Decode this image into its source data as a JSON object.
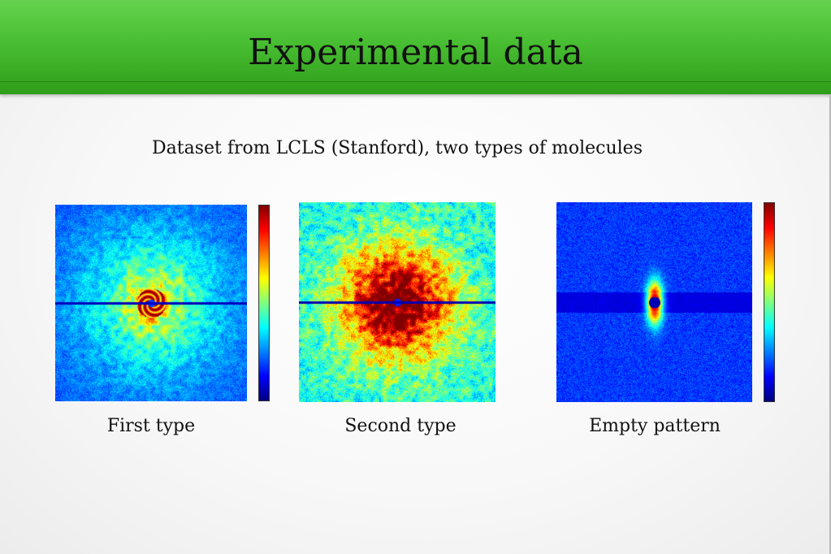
{
  "slide": {
    "title": "Experimental data",
    "subtitle": "Dataset from LCLS (Stanford), two types of molecules"
  },
  "panels": [
    {
      "caption": "First type",
      "pattern": "diffraction-rings",
      "colorbar": true
    },
    {
      "caption": "Second type",
      "pattern": "diffraction-speckle",
      "colorbar": false
    },
    {
      "caption": "Empty pattern",
      "pattern": "central-spot-with-band",
      "colorbar": true
    }
  ],
  "colors": {
    "title_bar_top": "#64d24e",
    "title_bar_bottom": "#2f9d1a",
    "colormap": "jet"
  }
}
